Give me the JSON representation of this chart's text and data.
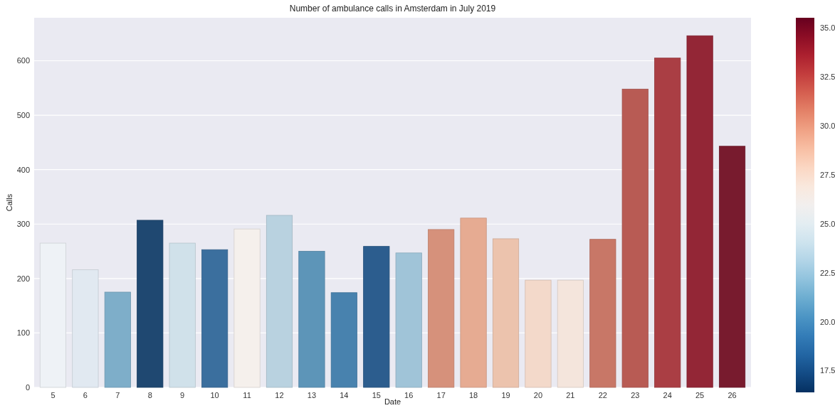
{
  "chart_data": {
    "type": "bar",
    "title": "Number of ambulance calls in Amsterdam in July 2019",
    "xlabel": "Date",
    "ylabel": "Calls",
    "categories": [
      "5",
      "6",
      "7",
      "8",
      "9",
      "10",
      "11",
      "12",
      "13",
      "14",
      "15",
      "16",
      "17",
      "18",
      "19",
      "20",
      "21",
      "22",
      "23",
      "24",
      "25",
      "26"
    ],
    "values": [
      265,
      216,
      175,
      307,
      265,
      253,
      291,
      316,
      250,
      174,
      259,
      247,
      290,
      311,
      273,
      197,
      197,
      272,
      548,
      605,
      646,
      443
    ],
    "colors": [
      "#eef2f6",
      "#e1e9f1",
      "#7eaec9",
      "#1f4871",
      "#d0e1ea",
      "#3b6f9e",
      "#f5f0ec",
      "#b9d2e0",
      "#5d95b8",
      "#4882ae",
      "#2c5d8e",
      "#a0c4d8",
      "#d6917b",
      "#e6ab92",
      "#ecc3ad",
      "#f3d9ca",
      "#f4e5dc",
      "#c87767",
      "#b85b54",
      "#aa3e44",
      "#932636",
      "#781b2e"
    ],
    "ylim": [
      0,
      679
    ],
    "yticks": [
      0,
      100,
      200,
      300,
      400,
      500,
      600
    ],
    "grid": "y",
    "clim": [
      16.4,
      35.5
    ],
    "cticks": [
      {
        "value": 17.5,
        "label": "17.5"
      },
      {
        "value": 20,
        "label": "20.0"
      },
      {
        "value": 22.5,
        "label": "22.5"
      },
      {
        "value": 25,
        "label": "25.0"
      },
      {
        "value": 27.5,
        "label": "27.5"
      },
      {
        "value": 30,
        "label": "30.0"
      },
      {
        "value": 32.5,
        "label": "32.5"
      },
      {
        "value": 35,
        "label": "35.0"
      }
    ]
  }
}
